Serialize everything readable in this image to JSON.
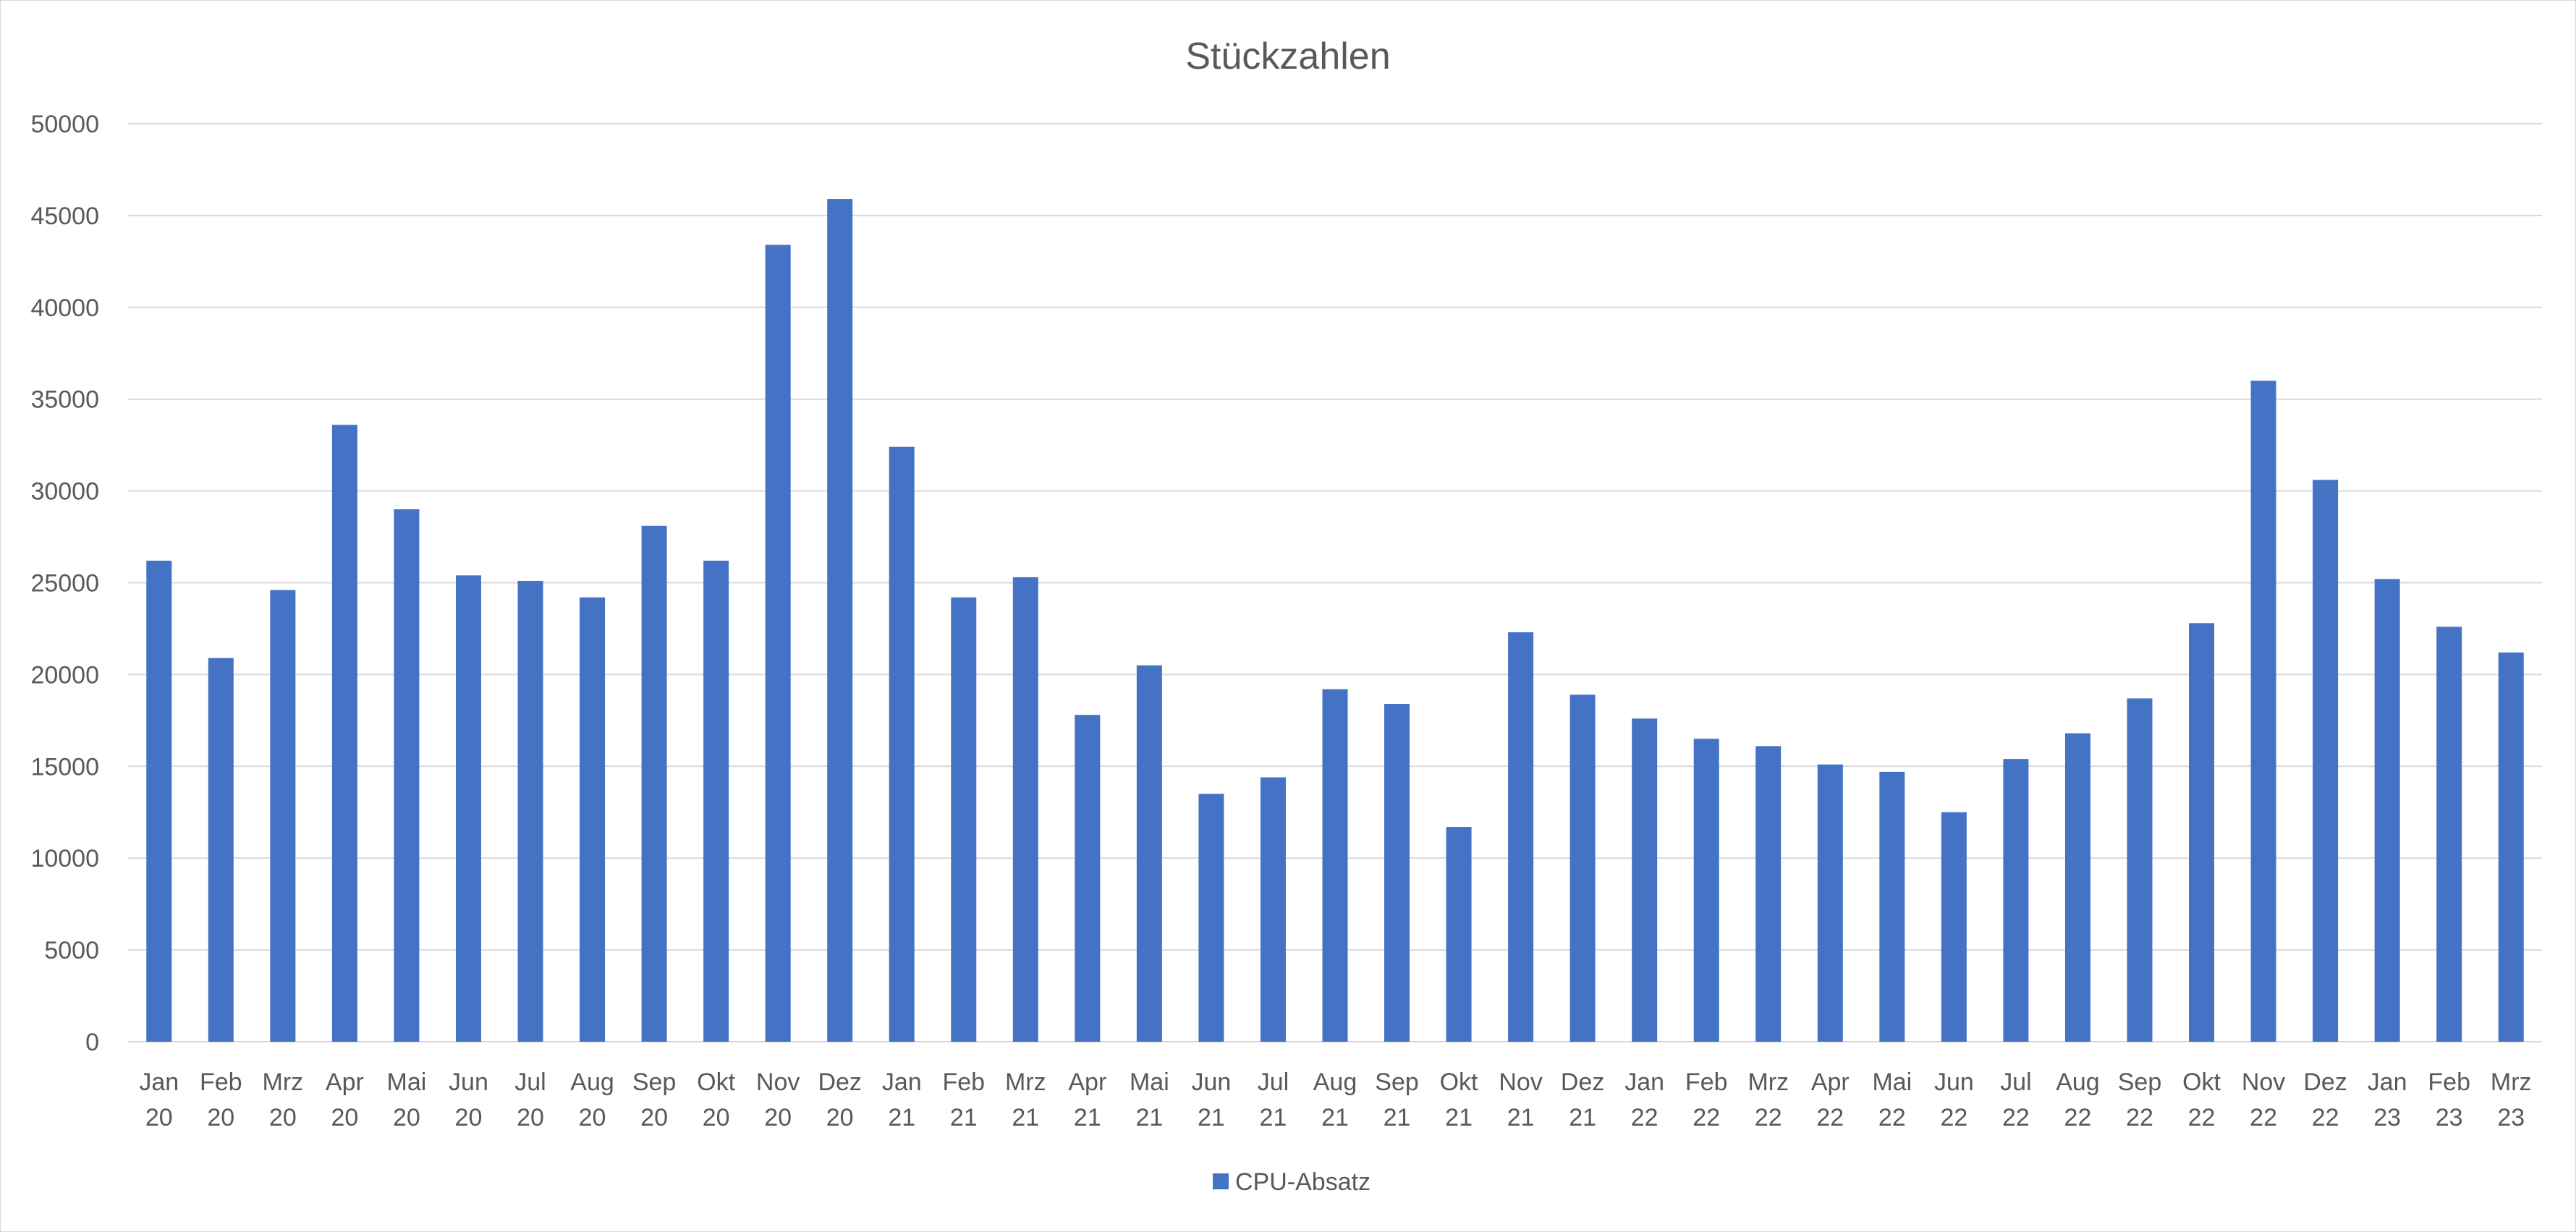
{
  "chart_data": {
    "type": "bar",
    "title": "Stückzahlen",
    "xlabel": "",
    "ylabel": "",
    "ylim": [
      0,
      50000
    ],
    "yticks": [
      0,
      5000,
      10000,
      15000,
      20000,
      25000,
      30000,
      35000,
      40000,
      45000,
      50000
    ],
    "grid": true,
    "legend_position": "bottom",
    "categories": [
      [
        "Jan",
        "20"
      ],
      [
        "Feb",
        "20"
      ],
      [
        "Mrz",
        "20"
      ],
      [
        "Apr",
        "20"
      ],
      [
        "Mai",
        "20"
      ],
      [
        "Jun",
        "20"
      ],
      [
        "Jul",
        "20"
      ],
      [
        "Aug",
        "20"
      ],
      [
        "Sep",
        "20"
      ],
      [
        "Okt",
        "20"
      ],
      [
        "Nov",
        "20"
      ],
      [
        "Dez",
        "20"
      ],
      [
        "Jan",
        "21"
      ],
      [
        "Feb",
        "21"
      ],
      [
        "Mrz",
        "21"
      ],
      [
        "Apr",
        "21"
      ],
      [
        "Mai",
        "21"
      ],
      [
        "Jun",
        "21"
      ],
      [
        "Jul",
        "21"
      ],
      [
        "Aug",
        "21"
      ],
      [
        "Sep",
        "21"
      ],
      [
        "Okt",
        "21"
      ],
      [
        "Nov",
        "21"
      ],
      [
        "Dez",
        "21"
      ],
      [
        "Jan",
        "22"
      ],
      [
        "Feb",
        "22"
      ],
      [
        "Mrz",
        "22"
      ],
      [
        "Apr",
        "22"
      ],
      [
        "Mai",
        "22"
      ],
      [
        "Jun",
        "22"
      ],
      [
        "Jul",
        "22"
      ],
      [
        "Aug",
        "22"
      ],
      [
        "Sep",
        "22"
      ],
      [
        "Okt",
        "22"
      ],
      [
        "Nov",
        "22"
      ],
      [
        "Dez",
        "22"
      ],
      [
        "Jan",
        "23"
      ],
      [
        "Feb",
        "23"
      ],
      [
        "Mrz",
        "23"
      ]
    ],
    "series": [
      {
        "name": "CPU-Absatz",
        "color": "#4472c4",
        "values": [
          26200,
          20900,
          24600,
          33600,
          29000,
          25400,
          25100,
          24200,
          28100,
          26200,
          43400,
          45900,
          32400,
          24200,
          25300,
          17800,
          20500,
          13500,
          14400,
          19200,
          18400,
          11700,
          22300,
          18900,
          17600,
          16500,
          16100,
          15100,
          14700,
          12500,
          15400,
          16800,
          18700,
          22800,
          36000,
          30600,
          25200,
          22600,
          21200
        ]
      }
    ]
  }
}
